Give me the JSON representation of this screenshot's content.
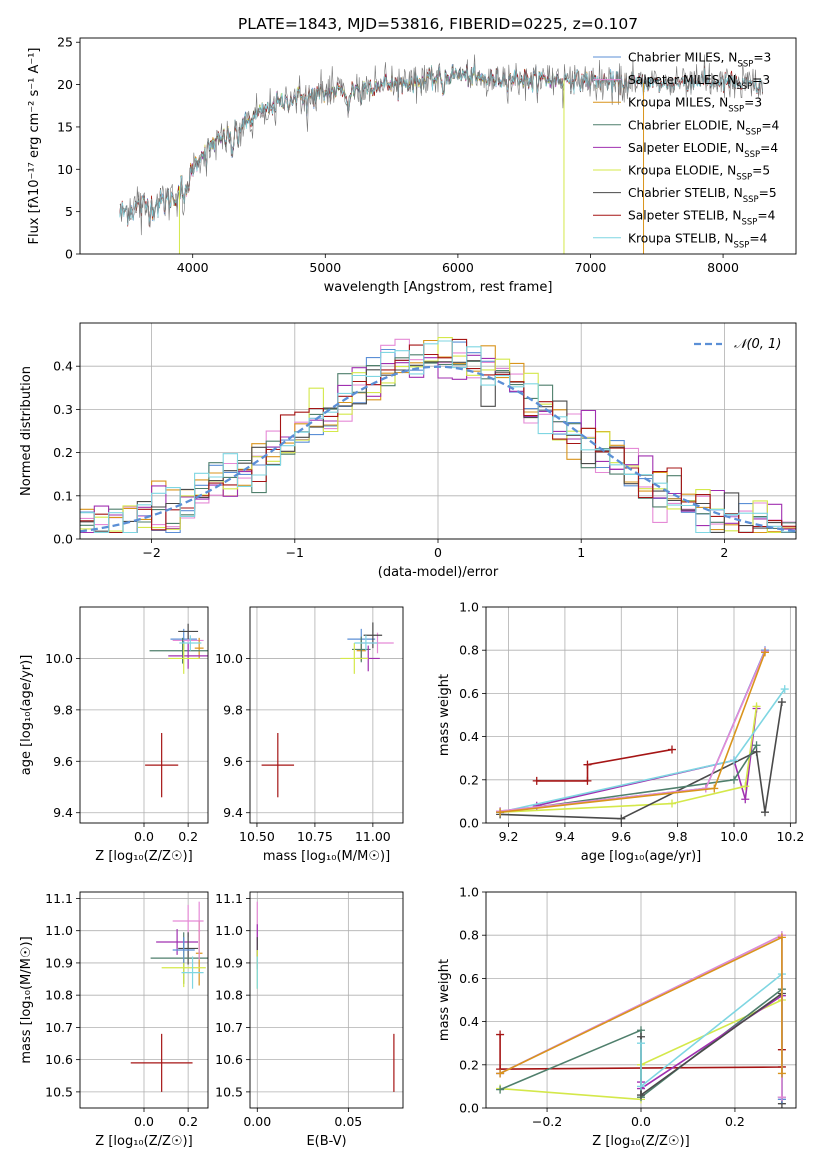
{
  "figure": {
    "title": "PLATE=1843, MJD=53816, FIBERID=0225, z=0.107"
  },
  "colors": {
    "Chabrier MILES": "#5b8fd6",
    "Salpeter MILES": "#e58ad6",
    "Kroupa MILES": "#d9941c",
    "Chabrier ELODIE": "#4f7f6c",
    "Salpeter ELODIE": "#a030b0",
    "Kroupa ELODIE": "#d4e84a",
    "Chabrier STELIB": "#4a4a4a",
    "Salpeter STELIB": "#a51515",
    "Kroupa STELIB": "#7fd6e2",
    "normal": "#5b8fd6",
    "weights_orange": "#e07a30"
  },
  "chart_data": [
    {
      "id": "spectrum",
      "type": "line",
      "title": "PLATE=1843, MJD=53816, FIBERID=0225, z=0.107",
      "xlabel": "wavelength [Angstrom, rest frame]",
      "ylabel": "Flux [fλ10⁻¹⁷ erg cm⁻² s⁻¹ A⁻¹]",
      "xlim": [
        3150,
        8550
      ],
      "ylim": [
        0,
        25.5
      ],
      "xticks": [
        4000,
        5000,
        6000,
        7000,
        8000
      ],
      "yticks": [
        0,
        5,
        10,
        15,
        20,
        25
      ],
      "grid": false,
      "legend": "top-right",
      "legend_entries": [
        {
          "name": "Chabrier MILES",
          "nssp": "3"
        },
        {
          "name": "Salpeter MILES",
          "nssp": "3"
        },
        {
          "name": "Kroupa MILES",
          "nssp": "3"
        },
        {
          "name": "Chabrier ELODIE",
          "nssp": "4"
        },
        {
          "name": "Salpeter ELODIE",
          "nssp": "4"
        },
        {
          "name": "Kroupa ELODIE",
          "nssp": "5"
        },
        {
          "name": "Chabrier STELIB",
          "nssp": "5"
        },
        {
          "name": "Salpeter STELIB",
          "nssp": "4"
        },
        {
          "name": "Kroupa STELIB",
          "nssp": "4"
        }
      ],
      "continuum": {
        "x": [
          3450,
          3600,
          3750,
          3850,
          3950,
          4050,
          4150,
          4300,
          4450,
          4600,
          4800,
          5000,
          5200,
          5400,
          5600,
          5800,
          6000,
          6200,
          6400,
          6600,
          6800,
          7000,
          7200,
          7400,
          7600,
          7800,
          8000,
          8300
        ],
        "y": [
          4.8,
          5.6,
          5.9,
          6.5,
          8.5,
          11.5,
          13.0,
          14.2,
          16.0,
          17.5,
          18.6,
          18.9,
          19.5,
          20.0,
          20.1,
          20.6,
          21.2,
          20.6,
          20.8,
          20.7,
          20.5,
          20.5,
          20.3,
          20.2,
          20.1,
          20.4,
          20.2,
          19.8
        ]
      }
    },
    {
      "id": "residuals",
      "type": "histogram",
      "xlabel": "(data-model)/error",
      "ylabel": "Normed distribution",
      "xlim": [
        -2.5,
        2.5
      ],
      "ylim": [
        0,
        0.5
      ],
      "xticks": [
        -2,
        -1,
        0,
        1,
        2
      ],
      "yticks": [
        0.0,
        0.1,
        0.2,
        0.3,
        0.4
      ],
      "grid": true,
      "legend": "top-right",
      "normal_label": "𝒩(0, 1)",
      "normal": {
        "mu": 0,
        "sigma": 1
      }
    },
    {
      "id": "age-vs-z",
      "type": "errorbar",
      "xlabel": "Z [log₁₀(Z/Z☉)]",
      "ylabel": "age  [log₁₀(age/yr)]",
      "xlim": [
        -0.29,
        0.29
      ],
      "ylim": [
        9.36,
        10.2
      ],
      "xticks": [
        0.0,
        0.2
      ],
      "yticks": [
        9.4,
        9.6,
        9.8,
        10.0
      ],
      "grid": true,
      "points": [
        {
          "c": "Salpeter STELIB",
          "x": 0.08,
          "y": 9.585,
          "xe": 0.075,
          "ye": 0.125
        },
        {
          "c": "Chabrier MILES",
          "x": 0.18,
          "y": 10.075,
          "xe": 0.06,
          "ye": 0.04
        },
        {
          "c": "Salpeter MILES",
          "x": 0.2,
          "y": 10.07,
          "xe": 0.07,
          "ye": 0.04
        },
        {
          "c": "Kroupa MILES",
          "x": 0.25,
          "y": 10.04,
          "xe": 0.02,
          "ye": 0.04
        },
        {
          "c": "Chabrier ELODIE",
          "x": 0.175,
          "y": 10.03,
          "xe": 0.15,
          "ye": 0.05
        },
        {
          "c": "Salpeter ELODIE",
          "x": 0.2,
          "y": 10.01,
          "xe": 0.09,
          "ye": 0.05
        },
        {
          "c": "Kroupa ELODIE",
          "x": 0.18,
          "y": 10.0,
          "xe": 0.07,
          "ye": 0.06
        },
        {
          "c": "Chabrier STELIB",
          "x": 0.2,
          "y": 10.105,
          "xe": 0.045,
          "ye": 0.03
        },
        {
          "c": "Kroupa STELIB",
          "x": 0.21,
          "y": 10.06,
          "xe": 0.05,
          "ye": 0.03
        }
      ]
    },
    {
      "id": "age-vs-mass",
      "type": "errorbar",
      "xlabel": "mass [log₁₀(M/M☉)]",
      "ylabel": "",
      "xlim": [
        10.47,
        11.13
      ],
      "ylim": [
        9.36,
        10.2
      ],
      "xticks": [
        10.5,
        10.75,
        11.0
      ],
      "yticks": [
        9.4,
        9.6,
        9.8,
        10.0
      ],
      "grid": true,
      "points": [
        {
          "c": "Salpeter STELIB",
          "x": 10.59,
          "y": 9.585,
          "xe": 0.07,
          "ye": 0.125
        },
        {
          "c": "Chabrier MILES",
          "x": 10.95,
          "y": 10.075,
          "xe": 0.06,
          "ye": 0.04
        },
        {
          "c": "Salpeter MILES",
          "x": 11.02,
          "y": 10.06,
          "xe": 0.07,
          "ye": 0.04
        },
        {
          "c": "Kroupa MILES",
          "x": 10.95,
          "y": 10.03,
          "xe": 0.02,
          "ye": 0.04
        },
        {
          "c": "Chabrier ELODIE",
          "x": 10.95,
          "y": 10.035,
          "xe": 0.04,
          "ye": 0.05
        },
        {
          "c": "Salpeter ELODIE",
          "x": 10.98,
          "y": 10.0,
          "xe": 0.05,
          "ye": 0.05
        },
        {
          "c": "Kroupa ELODIE",
          "x": 10.92,
          "y": 10.0,
          "xe": 0.06,
          "ye": 0.06
        },
        {
          "c": "Chabrier STELIB",
          "x": 11.0,
          "y": 10.09,
          "xe": 0.04,
          "ye": 0.05
        },
        {
          "c": "Kroupa STELIB",
          "x": 10.97,
          "y": 10.06,
          "xe": 0.05,
          "ye": 0.03
        }
      ]
    },
    {
      "id": "weight-vs-age",
      "type": "line",
      "xlabel": "age  [log₁₀(age/yr)]",
      "ylabel": "mass weight",
      "xlim": [
        9.12,
        10.22
      ],
      "ylim": [
        0.0,
        1.0
      ],
      "xticks": [
        9.2,
        9.4,
        9.6,
        9.8,
        10.0,
        10.2
      ],
      "yticks": [
        0.0,
        0.2,
        0.4,
        0.6,
        0.8,
        1.0
      ],
      "grid": true,
      "series": [
        {
          "c": "Salpeter STELIB",
          "x": [
            9.3,
            9.48,
            9.48,
            9.78
          ],
          "y": [
            0.195,
            0.195,
            0.27,
            0.34
          ]
        },
        {
          "c": "Salpeter ELODIE",
          "x": [
            9.3,
            10.0,
            10.04,
            10.08
          ],
          "y": [
            0.08,
            0.29,
            0.11,
            0.53
          ]
        },
        {
          "c": "Kroupa ELODIE",
          "x": [
            9.17,
            9.78,
            10.04,
            10.08
          ],
          "y": [
            0.05,
            0.09,
            0.17,
            0.54
          ]
        },
        {
          "c": "Chabrier STELIB",
          "x": [
            9.17,
            9.6,
            10.08,
            10.11,
            10.17
          ],
          "y": [
            0.04,
            0.02,
            0.33,
            0.05,
            0.56
          ]
        },
        {
          "c": "Kroupa STELIB",
          "x": [
            9.17,
            10.0,
            10.18
          ],
          "y": [
            0.05,
            0.29,
            0.62
          ]
        },
        {
          "c": "Chabrier ELODIE",
          "x": [
            9.17,
            10.0,
            10.08
          ],
          "y": [
            0.05,
            0.2,
            0.36
          ]
        },
        {
          "c": "Chabrier MILES",
          "x": [
            9.17,
            9.9,
            10.11
          ],
          "y": [
            0.055,
            0.16,
            0.8
          ]
        },
        {
          "c": "Salpeter MILES",
          "x": [
            9.17,
            9.9,
            10.11
          ],
          "y": [
            0.055,
            0.16,
            0.795
          ]
        },
        {
          "c": "Kroupa MILES",
          "x": [
            9.17,
            9.93,
            10.11
          ],
          "y": [
            0.05,
            0.16,
            0.79
          ]
        }
      ]
    },
    {
      "id": "mass-vs-z",
      "type": "errorbar",
      "xlabel": "Z [log₁₀(Z/Z☉)]",
      "ylabel": "mass [log₁₀(M/M☉)]",
      "xlim": [
        -0.29,
        0.29
      ],
      "ylim": [
        10.45,
        11.12
      ],
      "xticks": [
        0.0,
        0.2
      ],
      "yticks": [
        10.5,
        10.6,
        10.7,
        10.8,
        10.9,
        11.0,
        11.1
      ],
      "grid": true,
      "points": [
        {
          "c": "Salpeter STELIB",
          "x": 0.08,
          "y": 10.59,
          "xe": 0.14,
          "ye": 0.09
        },
        {
          "c": "Salpeter MILES",
          "x": 0.2,
          "y": 11.03,
          "xe": 0.07,
          "ye": 0.05
        },
        {
          "c": "Salpeter ELODIE",
          "x": 0.15,
          "y": 10.965,
          "xe": 0.095,
          "ye": 0.04
        },
        {
          "c": "Chabrier STELIB",
          "x": 0.2,
          "y": 10.945,
          "xe": 0.045,
          "ye": 0.05
        },
        {
          "c": "Kroupa MILES",
          "x": 0.25,
          "y": 10.93,
          "xe": 0.015,
          "ye": 0.1
        },
        {
          "c": "Chabrier ELODIE",
          "x": 0.18,
          "y": 10.915,
          "xe": 0.15,
          "ye": 0.08
        },
        {
          "c": "Kroupa ELODIE",
          "x": 0.18,
          "y": 10.885,
          "xe": 0.1,
          "ye": 0.06
        },
        {
          "c": "Kroupa STELIB",
          "x": 0.22,
          "y": 10.87,
          "xe": 0.05,
          "ye": 0.05
        },
        {
          "c": "Chabrier MILES",
          "x": 0.18,
          "y": 10.94,
          "xe": 0.05,
          "ye": 0.04
        },
        {
          "c": "Salpeter MILES",
          "x": 0.25,
          "y": 11.0,
          "xe": 0.005,
          "ye": 0.09
        }
      ]
    },
    {
      "id": "mass-vs-ebv",
      "type": "errorbar",
      "xlabel": "E(B-V)",
      "ylabel": "",
      "xlim": [
        -0.004,
        0.08
      ],
      "ylim": [
        10.45,
        11.12
      ],
      "xticks": [
        0.0,
        0.05
      ],
      "yticks": [
        10.5,
        10.6,
        10.7,
        10.8,
        10.9,
        11.0,
        11.1
      ],
      "grid": true,
      "points": [
        {
          "c": "Salpeter STELIB",
          "x": 0.075,
          "y": 10.59,
          "xe": 0,
          "ye": 0.09
        },
        {
          "c": "Salpeter MILES",
          "x": 0.0,
          "y": 11.03,
          "xe": 0,
          "ye": 0.06
        },
        {
          "c": "Salpeter ELODIE",
          "x": 0.0,
          "y": 10.96,
          "xe": 0,
          "ye": 0.06
        },
        {
          "c": "Chabrier STELIB",
          "x": 0.0,
          "y": 10.93,
          "xe": 0,
          "ye": 0.05
        },
        {
          "c": "Kroupa ELODIE",
          "x": 0.0,
          "y": 10.88,
          "xe": 0,
          "ye": 0.06
        },
        {
          "c": "Kroupa STELIB",
          "x": 0.0,
          "y": 10.87,
          "xe": 0,
          "ye": 0.05
        }
      ]
    },
    {
      "id": "weight-vs-z",
      "type": "line",
      "xlabel": "Z [log₁₀(Z/Z☉)]",
      "ylabel": "mass weight",
      "xlim": [
        -0.33,
        0.33
      ],
      "ylim": [
        0.0,
        1.0
      ],
      "xticks": [
        -0.2,
        0.0,
        0.2
      ],
      "yticks": [
        0.0,
        0.2,
        0.4,
        0.6,
        0.8,
        1.0
      ],
      "grid": true,
      "series": [
        {
          "c": "Salpeter STELIB",
          "x": [
            -0.3,
            -0.3,
            0.3,
            0.3
          ],
          "y": [
            0.34,
            0.18,
            0.19,
            0.27
          ]
        },
        {
          "c": "Kroupa ELODIE",
          "x": [
            -0.3,
            0.0,
            0.0,
            0.3,
            0.3
          ],
          "y": [
            0.09,
            0.04,
            0.2,
            0.5,
            0.05
          ]
        },
        {
          "c": "Chabrier ELODIE",
          "x": [
            -0.3,
            0.0,
            0.0,
            0.3,
            0.3
          ],
          "y": [
            0.085,
            0.36,
            0.05,
            0.55,
            0.05
          ]
        },
        {
          "c": "Salpeter ELODIE",
          "x": [
            0.0,
            0.0,
            0.3,
            0.3
          ],
          "y": [
            0.12,
            0.09,
            0.52,
            0.04
          ]
        },
        {
          "c": "Chabrier STELIB",
          "x": [
            0.0,
            0.0,
            0.3,
            0.3
          ],
          "y": [
            0.33,
            0.06,
            0.53,
            0.02
          ]
        },
        {
          "c": "Kroupa STELIB",
          "x": [
            0.0,
            0.0,
            0.3,
            0.3
          ],
          "y": [
            0.3,
            0.1,
            0.62,
            0.05
          ]
        },
        {
          "c": "Chabrier MILES",
          "x": [
            -0.3,
            0.3,
            0.3
          ],
          "y": [
            0.16,
            0.8,
            0.04
          ]
        },
        {
          "c": "Salpeter MILES",
          "x": [
            -0.3,
            0.3,
            0.3
          ],
          "y": [
            0.16,
            0.8,
            0.05
          ]
        },
        {
          "c": "Kroupa MILES",
          "x": [
            -0.3,
            0.3,
            0.3
          ],
          "y": [
            0.16,
            0.79,
            0.16
          ]
        }
      ]
    }
  ]
}
